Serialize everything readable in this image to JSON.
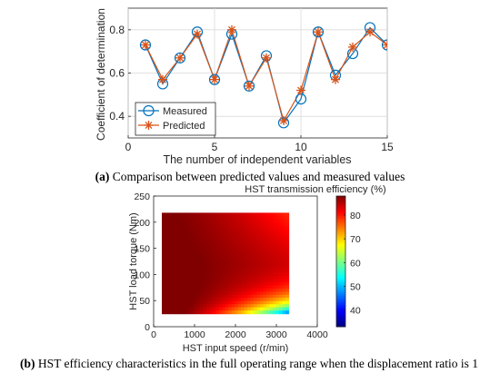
{
  "chart_data": [
    {
      "type": "line",
      "xlabel": "The number of independent variables",
      "ylabel": "Coefficient of determination",
      "xlim": [
        0,
        15
      ],
      "ylim": [
        0.3,
        0.9
      ],
      "xticks": [
        "0",
        "5",
        "10",
        "15"
      ],
      "yticks": [
        "0.4",
        "0.6",
        "0.8"
      ],
      "grid": true,
      "legend_placement": "lower-left",
      "x": [
        1,
        2,
        3,
        4,
        5,
        6,
        7,
        8,
        9,
        10,
        11,
        12,
        13,
        14,
        15
      ],
      "series": [
        {
          "name": "Measured",
          "color": "#0072BD",
          "marker": "circle",
          "values": [
            0.73,
            0.55,
            0.67,
            0.79,
            0.57,
            0.78,
            0.54,
            0.68,
            0.37,
            0.48,
            0.79,
            0.59,
            0.69,
            0.81,
            0.73
          ]
        },
        {
          "name": "Predicted",
          "color": "#D95319",
          "marker": "asterisk",
          "values": [
            0.73,
            0.57,
            0.67,
            0.78,
            0.57,
            0.8,
            0.54,
            0.67,
            0.38,
            0.52,
            0.79,
            0.57,
            0.72,
            0.79,
            0.73
          ]
        }
      ],
      "caption_label": "(a)",
      "caption_text": " Comparison between predicted values and measured values"
    },
    {
      "type": "heatmap",
      "title": "HST transmission efficiency (%)",
      "xlabel": "HST input speed (r/min)",
      "ylabel": "HST load torque (Nm)",
      "xlim": [
        0,
        4000
      ],
      "ylim": [
        0,
        250
      ],
      "xticks": [
        "0",
        "1000",
        "2000",
        "3000",
        "4000"
      ],
      "yticks": [
        "0",
        "50",
        "100",
        "150",
        "200",
        "250"
      ],
      "data_x_range": [
        200,
        3300
      ],
      "data_y_range": [
        25,
        218
      ],
      "colorbar_range": [
        33,
        88
      ],
      "colorbar_ticks": [
        "40",
        "50",
        "60",
        "70",
        "80"
      ],
      "colormap": "jet",
      "caption_label": "(b)",
      "caption_text": " HST efficiency characteristics in the full operating range when the displacement ratio is 1"
    }
  ]
}
